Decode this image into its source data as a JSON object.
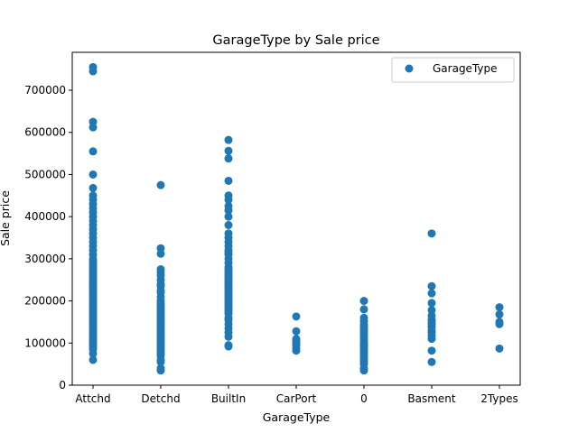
{
  "chart_data": {
    "type": "scatter",
    "title": "GarageType by Sale price",
    "xlabel": "GarageType",
    "ylabel": "Sale price",
    "categories": [
      "Attchd",
      "Detchd",
      "BuiltIn",
      "CarPort",
      "0",
      "Basment",
      "2Types"
    ],
    "ylim": [
      0,
      790000
    ],
    "yticks": [
      0,
      100000,
      200000,
      300000,
      400000,
      500000,
      600000,
      700000
    ],
    "ytick_labels": [
      "0",
      "100000",
      "200000",
      "300000",
      "400000",
      "500000",
      "600000",
      "700000"
    ],
    "grid": false,
    "legend_position": "top-right",
    "color": "#1f77b4",
    "series": [
      {
        "name": "GarageType",
        "points": [
          [
            "Attchd",
            60000
          ],
          [
            "Attchd",
            75000
          ],
          [
            "Attchd",
            85000
          ],
          [
            "Attchd",
            90000
          ],
          [
            "Attchd",
            95000
          ],
          [
            "Attchd",
            100000
          ],
          [
            "Attchd",
            105000
          ],
          [
            "Attchd",
            110000
          ],
          [
            "Attchd",
            115000
          ],
          [
            "Attchd",
            120000
          ],
          [
            "Attchd",
            125000
          ],
          [
            "Attchd",
            130000
          ],
          [
            "Attchd",
            135000
          ],
          [
            "Attchd",
            140000
          ],
          [
            "Attchd",
            145000
          ],
          [
            "Attchd",
            150000
          ],
          [
            "Attchd",
            155000
          ],
          [
            "Attchd",
            160000
          ],
          [
            "Attchd",
            165000
          ],
          [
            "Attchd",
            170000
          ],
          [
            "Attchd",
            175000
          ],
          [
            "Attchd",
            180000
          ],
          [
            "Attchd",
            185000
          ],
          [
            "Attchd",
            190000
          ],
          [
            "Attchd",
            195000
          ],
          [
            "Attchd",
            200000
          ],
          [
            "Attchd",
            205000
          ],
          [
            "Attchd",
            210000
          ],
          [
            "Attchd",
            215000
          ],
          [
            "Attchd",
            220000
          ],
          [
            "Attchd",
            225000
          ],
          [
            "Attchd",
            230000
          ],
          [
            "Attchd",
            235000
          ],
          [
            "Attchd",
            240000
          ],
          [
            "Attchd",
            245000
          ],
          [
            "Attchd",
            250000
          ],
          [
            "Attchd",
            255000
          ],
          [
            "Attchd",
            260000
          ],
          [
            "Attchd",
            265000
          ],
          [
            "Attchd",
            270000
          ],
          [
            "Attchd",
            275000
          ],
          [
            "Attchd",
            280000
          ],
          [
            "Attchd",
            285000
          ],
          [
            "Attchd",
            290000
          ],
          [
            "Attchd",
            295000
          ],
          [
            "Attchd",
            300000
          ],
          [
            "Attchd",
            310000
          ],
          [
            "Attchd",
            320000
          ],
          [
            "Attchd",
            330000
          ],
          [
            "Attchd",
            340000
          ],
          [
            "Attchd",
            350000
          ],
          [
            "Attchd",
            360000
          ],
          [
            "Attchd",
            370000
          ],
          [
            "Attchd",
            380000
          ],
          [
            "Attchd",
            390000
          ],
          [
            "Attchd",
            400000
          ],
          [
            "Attchd",
            410000
          ],
          [
            "Attchd",
            420000
          ],
          [
            "Attchd",
            430000
          ],
          [
            "Attchd",
            440000
          ],
          [
            "Attchd",
            450000
          ],
          [
            "Attchd",
            468000
          ],
          [
            "Attchd",
            500000
          ],
          [
            "Attchd",
            555000
          ],
          [
            "Attchd",
            612000
          ],
          [
            "Attchd",
            625000
          ],
          [
            "Attchd",
            745000
          ],
          [
            "Attchd",
            755000
          ],
          [
            "Detchd",
            35000
          ],
          [
            "Detchd",
            40000
          ],
          [
            "Detchd",
            55000
          ],
          [
            "Detchd",
            60000
          ],
          [
            "Detchd",
            70000
          ],
          [
            "Detchd",
            75000
          ],
          [
            "Detchd",
            80000
          ],
          [
            "Detchd",
            85000
          ],
          [
            "Detchd",
            90000
          ],
          [
            "Detchd",
            95000
          ],
          [
            "Detchd",
            100000
          ],
          [
            "Detchd",
            105000
          ],
          [
            "Detchd",
            110000
          ],
          [
            "Detchd",
            115000
          ],
          [
            "Detchd",
            120000
          ],
          [
            "Detchd",
            125000
          ],
          [
            "Detchd",
            130000
          ],
          [
            "Detchd",
            135000
          ],
          [
            "Detchd",
            140000
          ],
          [
            "Detchd",
            145000
          ],
          [
            "Detchd",
            150000
          ],
          [
            "Detchd",
            155000
          ],
          [
            "Detchd",
            160000
          ],
          [
            "Detchd",
            165000
          ],
          [
            "Detchd",
            170000
          ],
          [
            "Detchd",
            175000
          ],
          [
            "Detchd",
            180000
          ],
          [
            "Detchd",
            185000
          ],
          [
            "Detchd",
            190000
          ],
          [
            "Detchd",
            195000
          ],
          [
            "Detchd",
            200000
          ],
          [
            "Detchd",
            210000
          ],
          [
            "Detchd",
            220000
          ],
          [
            "Detchd",
            225000
          ],
          [
            "Detchd",
            235000
          ],
          [
            "Detchd",
            240000
          ],
          [
            "Detchd",
            250000
          ],
          [
            "Detchd",
            260000
          ],
          [
            "Detchd",
            268000
          ],
          [
            "Detchd",
            275000
          ],
          [
            "Detchd",
            312000
          ],
          [
            "Detchd",
            325000
          ],
          [
            "Detchd",
            475000
          ],
          [
            "BuiltIn",
            92000
          ],
          [
            "BuiltIn",
            95000
          ],
          [
            "BuiltIn",
            115000
          ],
          [
            "BuiltIn",
            125000
          ],
          [
            "BuiltIn",
            135000
          ],
          [
            "BuiltIn",
            145000
          ],
          [
            "BuiltIn",
            155000
          ],
          [
            "BuiltIn",
            160000
          ],
          [
            "BuiltIn",
            170000
          ],
          [
            "BuiltIn",
            175000
          ],
          [
            "BuiltIn",
            180000
          ],
          [
            "BuiltIn",
            185000
          ],
          [
            "BuiltIn",
            190000
          ],
          [
            "BuiltIn",
            195000
          ],
          [
            "BuiltIn",
            200000
          ],
          [
            "BuiltIn",
            205000
          ],
          [
            "BuiltIn",
            210000
          ],
          [
            "BuiltIn",
            215000
          ],
          [
            "BuiltIn",
            220000
          ],
          [
            "BuiltIn",
            225000
          ],
          [
            "BuiltIn",
            230000
          ],
          [
            "BuiltIn",
            235000
          ],
          [
            "BuiltIn",
            240000
          ],
          [
            "BuiltIn",
            245000
          ],
          [
            "BuiltIn",
            250000
          ],
          [
            "BuiltIn",
            255000
          ],
          [
            "BuiltIn",
            260000
          ],
          [
            "BuiltIn",
            265000
          ],
          [
            "BuiltIn",
            270000
          ],
          [
            "BuiltIn",
            275000
          ],
          [
            "BuiltIn",
            280000
          ],
          [
            "BuiltIn",
            290000
          ],
          [
            "BuiltIn",
            300000
          ],
          [
            "BuiltIn",
            310000
          ],
          [
            "BuiltIn",
            315000
          ],
          [
            "BuiltIn",
            320000
          ],
          [
            "BuiltIn",
            330000
          ],
          [
            "BuiltIn",
            340000
          ],
          [
            "BuiltIn",
            350000
          ],
          [
            "BuiltIn",
            360000
          ],
          [
            "BuiltIn",
            380000
          ],
          [
            "BuiltIn",
            400000
          ],
          [
            "BuiltIn",
            415000
          ],
          [
            "BuiltIn",
            425000
          ],
          [
            "BuiltIn",
            440000
          ],
          [
            "BuiltIn",
            450000
          ],
          [
            "BuiltIn",
            485000
          ],
          [
            "BuiltIn",
            538000
          ],
          [
            "BuiltIn",
            556000
          ],
          [
            "BuiltIn",
            582000
          ],
          [
            "CarPort",
            82000
          ],
          [
            "CarPort",
            88000
          ],
          [
            "CarPort",
            95000
          ],
          [
            "CarPort",
            100000
          ],
          [
            "CarPort",
            105000
          ],
          [
            "CarPort",
            110000
          ],
          [
            "CarPort",
            128000
          ],
          [
            "CarPort",
            163000
          ],
          [
            "0",
            35000
          ],
          [
            "0",
            40000
          ],
          [
            "0",
            50000
          ],
          [
            "0",
            55000
          ],
          [
            "0",
            60000
          ],
          [
            "0",
            65000
          ],
          [
            "0",
            70000
          ],
          [
            "0",
            75000
          ],
          [
            "0",
            80000
          ],
          [
            "0",
            85000
          ],
          [
            "0",
            88000
          ],
          [
            "0",
            92000
          ],
          [
            "0",
            95000
          ],
          [
            "0",
            100000
          ],
          [
            "0",
            105000
          ],
          [
            "0",
            110000
          ],
          [
            "0",
            115000
          ],
          [
            "0",
            120000
          ],
          [
            "0",
            125000
          ],
          [
            "0",
            130000
          ],
          [
            "0",
            135000
          ],
          [
            "0",
            140000
          ],
          [
            "0",
            145000
          ],
          [
            "0",
            152000
          ],
          [
            "0",
            160000
          ],
          [
            "0",
            180000
          ],
          [
            "0",
            200000
          ],
          [
            "Basment",
            55000
          ],
          [
            "Basment",
            82000
          ],
          [
            "Basment",
            110000
          ],
          [
            "Basment",
            118000
          ],
          [
            "Basment",
            125000
          ],
          [
            "Basment",
            130000
          ],
          [
            "Basment",
            138000
          ],
          [
            "Basment",
            145000
          ],
          [
            "Basment",
            150000
          ],
          [
            "Basment",
            155000
          ],
          [
            "Basment",
            165000
          ],
          [
            "Basment",
            178000
          ],
          [
            "Basment",
            195000
          ],
          [
            "Basment",
            218000
          ],
          [
            "Basment",
            235000
          ],
          [
            "Basment",
            360000
          ],
          [
            "2Types",
            87000
          ],
          [
            "2Types",
            145000
          ],
          [
            "2Types",
            150000
          ],
          [
            "2Types",
            168000
          ],
          [
            "2Types",
            185000
          ]
        ]
      }
    ]
  }
}
